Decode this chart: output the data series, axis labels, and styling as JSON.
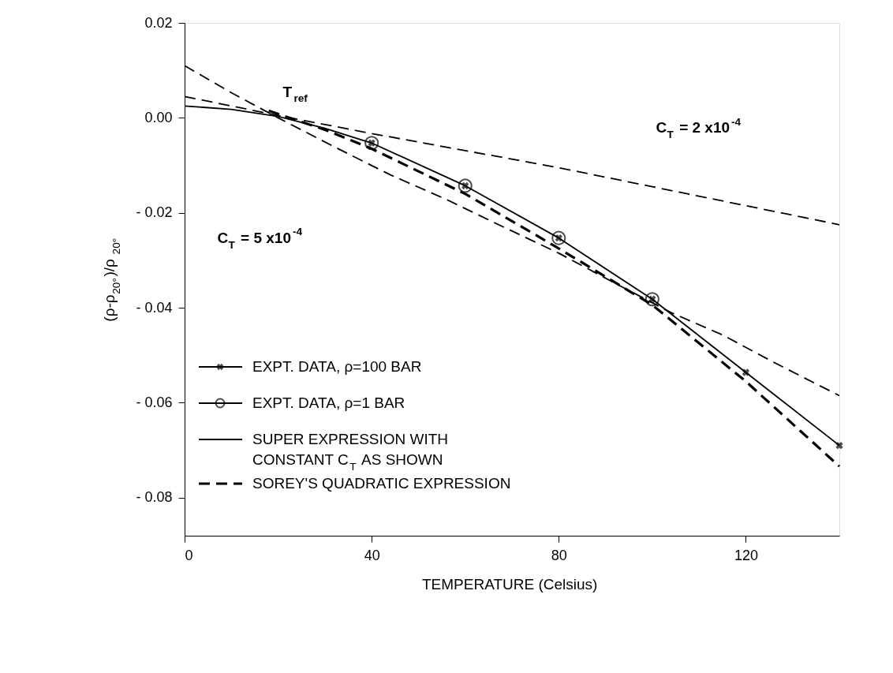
{
  "chart_data": {
    "type": "line",
    "xlabel": "TEMPERATURE (Celsius)",
    "ylabel": "(ρ-ρ$_{20°}$)/ρ$_{20°}$",
    "xlim": [
      0,
      140
    ],
    "ylim": [
      -0.088,
      0.02
    ],
    "xticks": [
      0,
      40,
      80,
      120
    ],
    "yticks": [
      0.02,
      {
        "value": 0,
        "label": "0.00"
      },
      {
        "value": -0.02,
        "label": "- 0.02"
      },
      {
        "value": -0.04,
        "label": "- 0.04"
      },
      {
        "value": -0.06,
        "label": "- 0.06"
      },
      {
        "value": -0.08,
        "label": "- 0.08"
      }
    ],
    "grid": false,
    "legend": "bottom left",
    "series": [
      {
        "name": "EXPT. DATA, ρ=100 BAR",
        "type": "scatter",
        "marker": "cross",
        "color": "#000000",
        "x": [
          40,
          60,
          80,
          100,
          120,
          140
        ],
        "values": [
          -0.0053,
          -0.0143,
          -0.0253,
          -0.0382,
          -0.0536,
          -0.069
        ]
      },
      {
        "name": "EXPT. DATA, ρ=1 BAR",
        "type": "scatter",
        "marker": "circle",
        "color": "#000000",
        "x": [
          40,
          60,
          80,
          100
        ],
        "values": [
          -0.0053,
          -0.0143,
          -0.0253,
          -0.0382
        ]
      },
      {
        "name": "SUPER EXPRESSION WITH CONSTANT C$_{T}$ AS SHOWN",
        "line_style": "solid",
        "color": "#000000",
        "x": [
          0,
          10,
          20,
          30,
          40,
          60,
          80,
          100,
          120,
          140
        ],
        "values": [
          0.0025,
          0.0018,
          0.0003,
          -0.0022,
          -0.0053,
          -0.0143,
          -0.0253,
          -0.0382,
          -0.0536,
          -0.069
        ]
      },
      {
        "name": "SOREY'S QUADRATIC EXPRESSION",
        "line_style": "dashed",
        "color": "#000000",
        "x": [
          18,
          20,
          30,
          40,
          60,
          80,
          100,
          120,
          140
        ],
        "values": [
          0.0015,
          0.0008,
          -0.0025,
          -0.0065,
          -0.016,
          -0.0275,
          -0.0394,
          -0.0555,
          -0.0734
        ]
      },
      {
        "line_style": "dashed",
        "color": "#000000",
        "x": [
          0,
          20,
          40,
          60,
          80,
          100,
          120,
          140
        ],
        "values": [
          0.0045,
          0.0005,
          -0.0033,
          -0.0069,
          -0.0105,
          -0.0145,
          -0.0185,
          -0.0225
        ]
      },
      {
        "line_style": "dashed",
        "color": "#000000",
        "x": [
          0,
          10,
          20,
          32,
          44,
          56,
          68,
          80,
          92,
          104,
          115,
          126,
          140
        ],
        "values": [
          0.011,
          0.0053,
          0.0,
          -0.0061,
          -0.012,
          -0.0172,
          -0.0229,
          -0.0285,
          -0.0348,
          -0.041,
          -0.0457,
          -0.0515,
          -0.0585
        ]
      }
    ],
    "annotations": [
      "T$_{ref}$",
      "C$_{T}$ = 2 x10$^{-4}$",
      "C$_{T}$ = 5 x10$^{-4}$"
    ]
  }
}
